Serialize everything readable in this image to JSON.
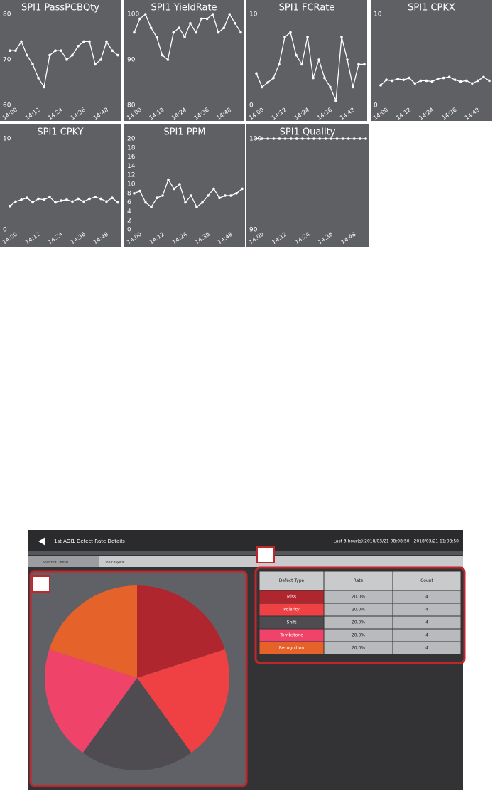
{
  "chart_data": [
    {
      "type": "line",
      "title": "SPI1 PassPCBQty",
      "color": "#ffffff",
      "categories": [
        "14:00",
        null,
        null,
        null,
        "14:12",
        null,
        null,
        null,
        "14:24",
        null,
        null,
        null,
        "14:36",
        null,
        null,
        null,
        "14:48",
        null,
        null,
        null
      ],
      "values": [
        72,
        72,
        74,
        71,
        69,
        66,
        64,
        71,
        72,
        72,
        70,
        71,
        73,
        74,
        74,
        69,
        70,
        74,
        72,
        71
      ],
      "ylim": [
        60,
        80
      ],
      "yticks": [
        60,
        70,
        80
      ]
    },
    {
      "type": "line",
      "title": "SPI1 YieldRate",
      "color": "#ffffff",
      "categories": [
        "14:00",
        null,
        null,
        null,
        "14:12",
        null,
        null,
        null,
        "14:24",
        null,
        null,
        null,
        "14:36",
        null,
        null,
        null,
        "14:48",
        null,
        null,
        null
      ],
      "values": [
        96,
        99,
        100,
        97,
        95,
        91,
        90,
        96,
        97,
        95,
        98,
        96,
        99,
        99,
        100,
        96,
        97,
        100,
        98,
        96
      ],
      "ylim": [
        80,
        100
      ],
      "yticks": [
        80,
        90,
        100
      ]
    },
    {
      "type": "line",
      "title": "SPI1 FCRate",
      "color": "#ffffff",
      "categories": [
        "14:00",
        null,
        null,
        null,
        "14:12",
        null,
        null,
        null,
        "14:24",
        null,
        null,
        null,
        "14:36",
        null,
        null,
        null,
        "14:48",
        null,
        null,
        null
      ],
      "values": [
        3.5,
        2,
        2.5,
        3,
        4.5,
        7.5,
        8,
        5.5,
        4.5,
        7.5,
        3,
        5,
        3,
        2,
        0.5,
        7.5,
        5,
        2,
        4.5,
        4.5
      ],
      "ylim": [
        0,
        10
      ],
      "yticks": [
        0,
        10
      ]
    },
    {
      "type": "line",
      "title": "SPI1 CPKX",
      "color": "#ffffff",
      "categories": [
        "14:00",
        null,
        null,
        null,
        "14:12",
        null,
        null,
        null,
        "14:24",
        null,
        null,
        null,
        "14:36",
        null,
        null,
        null,
        "14:48",
        null,
        null,
        null
      ],
      "values": [
        2.2,
        2.8,
        2.7,
        2.9,
        2.8,
        3,
        2.4,
        2.7,
        2.7,
        2.6,
        2.9,
        3,
        3.1,
        2.8,
        2.6,
        2.7,
        2.4,
        2.7,
        3.1,
        2.7
      ],
      "ylim": [
        0,
        10
      ],
      "yticks": [
        0,
        10
      ]
    },
    {
      "type": "line",
      "title": "SPI1 CPKY",
      "color": "#ffffff",
      "categories": [
        "14:00",
        null,
        null,
        null,
        "14:12",
        null,
        null,
        null,
        "14:24",
        null,
        null,
        null,
        "14:36",
        null,
        null,
        null,
        "14:48",
        null,
        null,
        null
      ],
      "values": [
        2.6,
        3.1,
        3.3,
        3.5,
        3,
        3.4,
        3.3,
        3.6,
        3,
        3.2,
        3.3,
        3.1,
        3.4,
        3.1,
        3.4,
        3.6,
        3.4,
        3.1,
        3.5,
        3
      ],
      "ylim": [
        0,
        10
      ],
      "yticks": [
        0,
        10
      ]
    },
    {
      "type": "line",
      "title": "SPI1 PPM",
      "color": "#ffffff",
      "categories": [
        "14:00",
        null,
        null,
        null,
        "14:12",
        null,
        null,
        null,
        "14:24",
        null,
        null,
        null,
        "14:36",
        null,
        null,
        null,
        "14:48",
        null,
        null,
        null
      ],
      "values": [
        8,
        8.5,
        6,
        5,
        7,
        7.5,
        11,
        9,
        10,
        6,
        7.5,
        5,
        6,
        7.5,
        9,
        7,
        7.5,
        7.5,
        8,
        9
      ],
      "ylim": [
        0,
        20
      ],
      "yticks": [
        0,
        2,
        4,
        6,
        8,
        10,
        12,
        14,
        16,
        18,
        20
      ]
    },
    {
      "type": "line",
      "title": "SPI1 Quality",
      "color": "#ffffff",
      "categories": [
        "14:00",
        null,
        null,
        null,
        "14:12",
        null,
        null,
        null,
        "14:24",
        null,
        null,
        null,
        "14:36",
        null,
        null,
        null,
        "14:48",
        null,
        null,
        null
      ],
      "values": [
        100,
        100,
        100,
        100,
        100,
        100,
        100,
        100,
        100,
        100,
        100,
        100,
        100,
        100,
        100,
        100,
        100,
        100,
        100,
        100
      ],
      "ylim": [
        90,
        100
      ],
      "yticks": [
        90,
        100
      ]
    },
    {
      "type": "pie",
      "categories": [
        "Miss",
        "Polarity",
        "Shift",
        "Tombstone",
        "Recognition"
      ],
      "values": [
        20,
        20,
        20,
        20,
        20
      ],
      "value_labels": [
        "20.0%",
        "20.0%",
        "20.0%",
        "20.0%",
        "20.0%"
      ],
      "colors": [
        "#b0262f",
        "#ef4043",
        "#4e4c51",
        "#ef436a",
        "#e5622b"
      ]
    }
  ],
  "header": {
    "title": "1st AOI1 Defect Rate Details",
    "range": "Last 3 hour(s):2018/03/21 08:08:50 - 2018/03/21 11:08:50"
  },
  "tabs": [
    "Selected Line(s)",
    "Line-Easylink"
  ],
  "table": {
    "columns": [
      "Defect Type",
      "Rate",
      "Count"
    ],
    "counts": [
      4,
      4,
      4,
      4,
      4
    ]
  }
}
